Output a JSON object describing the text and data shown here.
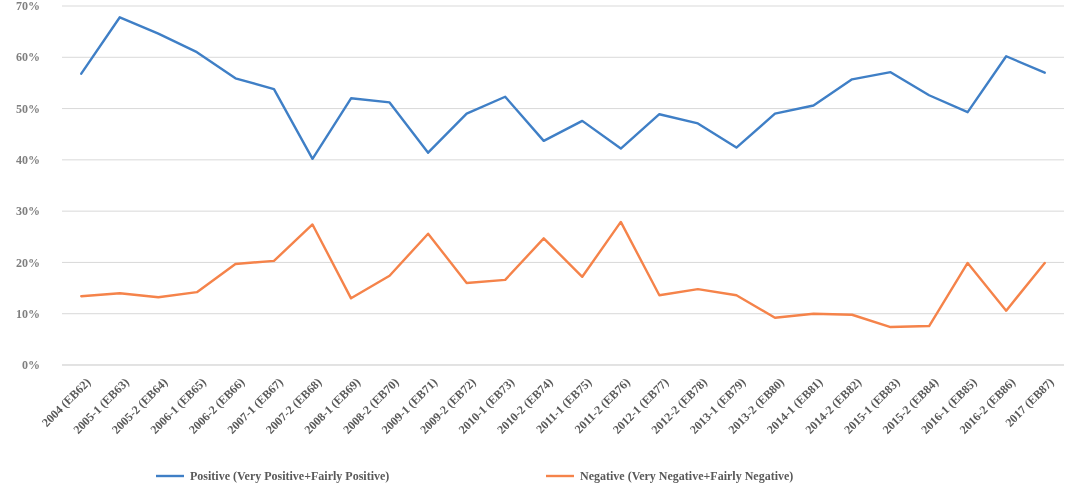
{
  "chart_data": {
    "type": "line",
    "categories": [
      "2004 (EB62)",
      "2005-1 (EB63)",
      "2005-2 (EB64)",
      "2006-1 (EB65)",
      "2006-2 (EB66)",
      "2007-1 (EB67)",
      "2007-2 (EB68)",
      "2008-1 (EB69)",
      "2008-2 (EB70)",
      "2009-1 (EB71)",
      "2009-2 (EB72)",
      "2010-1 (EB73)",
      "2010-2 (EB74)",
      "2011-1 (EB75)",
      "2011-2 (EB76)",
      "2012-1 (EB77)",
      "2012-2 (EB78)",
      "2013-1 (EB79)",
      "2013-2 (EB80)",
      "2014-1 (EB81)",
      "2014-2 (EB82)",
      "2015-1 (EB83)",
      "2015-2 (EB84)",
      "2016-1 (EB85)",
      "2016-2 (EB86)",
      "2017 (EB87)"
    ],
    "series": [
      {
        "name": "Positive (Very Positive+Fairly Positive)",
        "color": "#3f7fc6",
        "values": [
          56.8,
          67.8,
          64.6,
          61,
          55.9,
          53.8,
          40.2,
          52,
          51.2,
          41.4,
          49,
          52.3,
          43.7,
          47.6,
          42.2,
          48.9,
          47.1,
          42.4,
          49,
          50.6,
          55.7,
          57.1,
          52.6,
          49.3,
          60.2,
          57
        ]
      },
      {
        "name": "Negative (Very Negative+Fairly Negative)",
        "color": "#f5834a",
        "values": [
          13.4,
          14,
          13.2,
          14.2,
          19.7,
          20.3,
          27.4,
          13,
          17.4,
          25.6,
          16,
          16.6,
          24.7,
          17.2,
          27.9,
          13.6,
          14.8,
          13.6,
          9.2,
          10,
          9.8,
          7.4,
          7.6,
          19.9,
          10.6,
          19.9
        ]
      }
    ],
    "ylim": [
      0,
      70
    ],
    "yticks": [
      {
        "value": 0,
        "label": "0%"
      },
      {
        "value": 10,
        "label": "10%"
      },
      {
        "value": 20,
        "label": "20%"
      },
      {
        "value": 30,
        "label": "30%"
      },
      {
        "value": 40,
        "label": "40%"
      },
      {
        "value": 50,
        "label": "50%"
      },
      {
        "value": 60,
        "label": "60%"
      },
      {
        "value": 70,
        "label": "70%"
      }
    ],
    "grid": "y",
    "legend": "bottom",
    "marker": "none",
    "line_style": "solid"
  }
}
